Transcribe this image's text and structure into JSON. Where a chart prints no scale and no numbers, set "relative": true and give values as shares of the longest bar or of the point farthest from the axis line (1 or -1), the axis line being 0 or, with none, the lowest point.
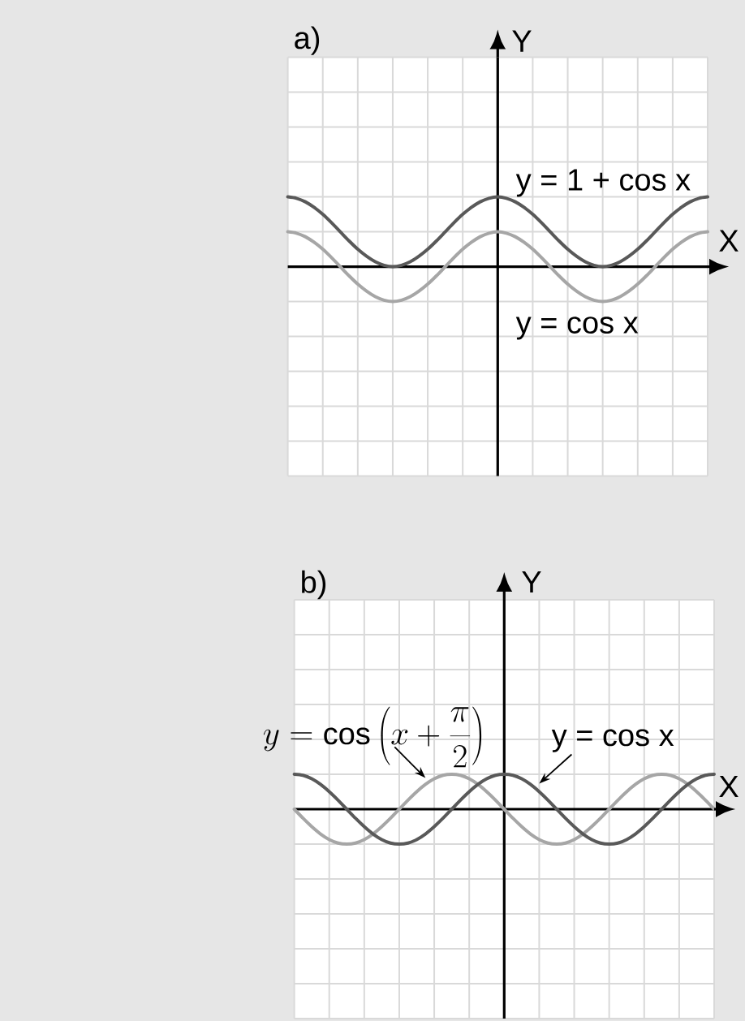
{
  "chart_data": [
    {
      "type": "line",
      "title": "a)",
      "xlabel": "X",
      "ylabel": "Y",
      "relative": true,
      "grid": true,
      "categories": [
        null,
        null,
        null,
        null,
        null,
        null,
        null,
        null,
        null,
        null,
        null,
        null,
        null,
        null,
        null,
        null,
        null,
        null,
        null,
        null,
        null,
        null,
        null,
        null,
        null,
        null,
        null,
        null,
        null,
        null,
        null,
        null,
        null,
        null,
        null,
        null,
        null,
        null,
        null,
        null,
        null,
        null,
        null,
        null,
        null,
        null,
        null,
        null,
        null
      ],
      "series": [
        {
          "name": "y = 1 + cos x",
          "color": "#595959",
          "values": [
            1,
            0.98,
            0.93,
            0.85,
            0.75,
            0.63,
            0.5,
            0.37,
            0.25,
            0.15,
            0.07,
            0.02,
            0,
            0.02,
            0.07,
            0.15,
            0.25,
            0.37,
            0.5,
            0.63,
            0.75,
            0.85,
            0.93,
            0.98,
            1,
            0.98,
            0.93,
            0.85,
            0.75,
            0.63,
            0.5,
            0.37,
            0.25,
            0.15,
            0.07,
            0.02,
            0,
            0.02,
            0.07,
            0.15,
            0.25,
            0.37,
            0.5,
            0.63,
            0.75,
            0.85,
            0.93,
            0.98,
            1
          ]
        },
        {
          "name": "y = cos x",
          "color": "#a6a6a6",
          "values": [
            0.5,
            0.48,
            0.43,
            0.35,
            0.25,
            0.13,
            0,
            -0.13,
            -0.25,
            -0.35,
            -0.43,
            -0.48,
            -0.5,
            -0.48,
            -0.43,
            -0.35,
            -0.25,
            -0.13,
            0,
            0.13,
            0.25,
            0.35,
            0.43,
            0.48,
            0.5,
            0.48,
            0.43,
            0.35,
            0.25,
            0.13,
            0,
            -0.13,
            -0.25,
            -0.35,
            -0.43,
            -0.48,
            -0.5,
            -0.48,
            -0.43,
            -0.35,
            -0.25,
            -0.13,
            0,
            0.13,
            0.25,
            0.35,
            0.43,
            0.48,
            0.5
          ]
        }
      ]
    },
    {
      "type": "line",
      "title": "b)",
      "xlabel": "X",
      "ylabel": "Y",
      "relative": true,
      "grid": true,
      "categories": [
        null,
        null,
        null,
        null,
        null,
        null,
        null,
        null,
        null,
        null,
        null,
        null,
        null,
        null,
        null,
        null,
        null,
        null,
        null,
        null,
        null,
        null,
        null,
        null,
        null,
        null,
        null,
        null,
        null,
        null,
        null,
        null,
        null,
        null,
        null,
        null,
        null,
        null,
        null,
        null,
        null,
        null,
        null,
        null,
        null,
        null,
        null,
        null,
        null
      ],
      "series": [
        {
          "name": "y = \\cos\\left(x + \\frac{\\pi}{2}\\right)",
          "color": "#a6a6a6",
          "values": [
            0,
            -0.26,
            -0.5,
            -0.71,
            -0.87,
            -0.97,
            -1,
            -0.97,
            -0.87,
            -0.71,
            -0.5,
            -0.26,
            0,
            0.26,
            0.5,
            0.71,
            0.87,
            0.97,
            1,
            0.97,
            0.87,
            0.71,
            0.5,
            0.26,
            0,
            -0.26,
            -0.5,
            -0.71,
            -0.87,
            -0.97,
            -1,
            -0.97,
            -0.87,
            -0.71,
            -0.5,
            -0.26,
            0,
            0.26,
            0.5,
            0.71,
            0.87,
            0.97,
            1,
            0.97,
            0.87,
            0.71,
            0.5,
            0.26,
            0
          ]
        },
        {
          "name": "y = cos x",
          "color": "#595959",
          "values": [
            1,
            0.97,
            0.87,
            0.71,
            0.5,
            0.26,
            0,
            -0.26,
            -0.5,
            -0.71,
            -0.87,
            -0.97,
            -1,
            -0.97,
            -0.87,
            -0.71,
            -0.5,
            -0.26,
            0,
            0.26,
            0.5,
            0.71,
            0.87,
            0.97,
            1,
            0.97,
            0.87,
            0.71,
            0.5,
            0.26,
            0,
            -0.26,
            -0.5,
            -0.71,
            -0.87,
            -0.97,
            -1,
            -0.97,
            -0.87,
            -0.71,
            -0.5,
            -0.26,
            0,
            0.26,
            0.5,
            0.71,
            0.87,
            0.97,
            1
          ]
        }
      ]
    }
  ]
}
